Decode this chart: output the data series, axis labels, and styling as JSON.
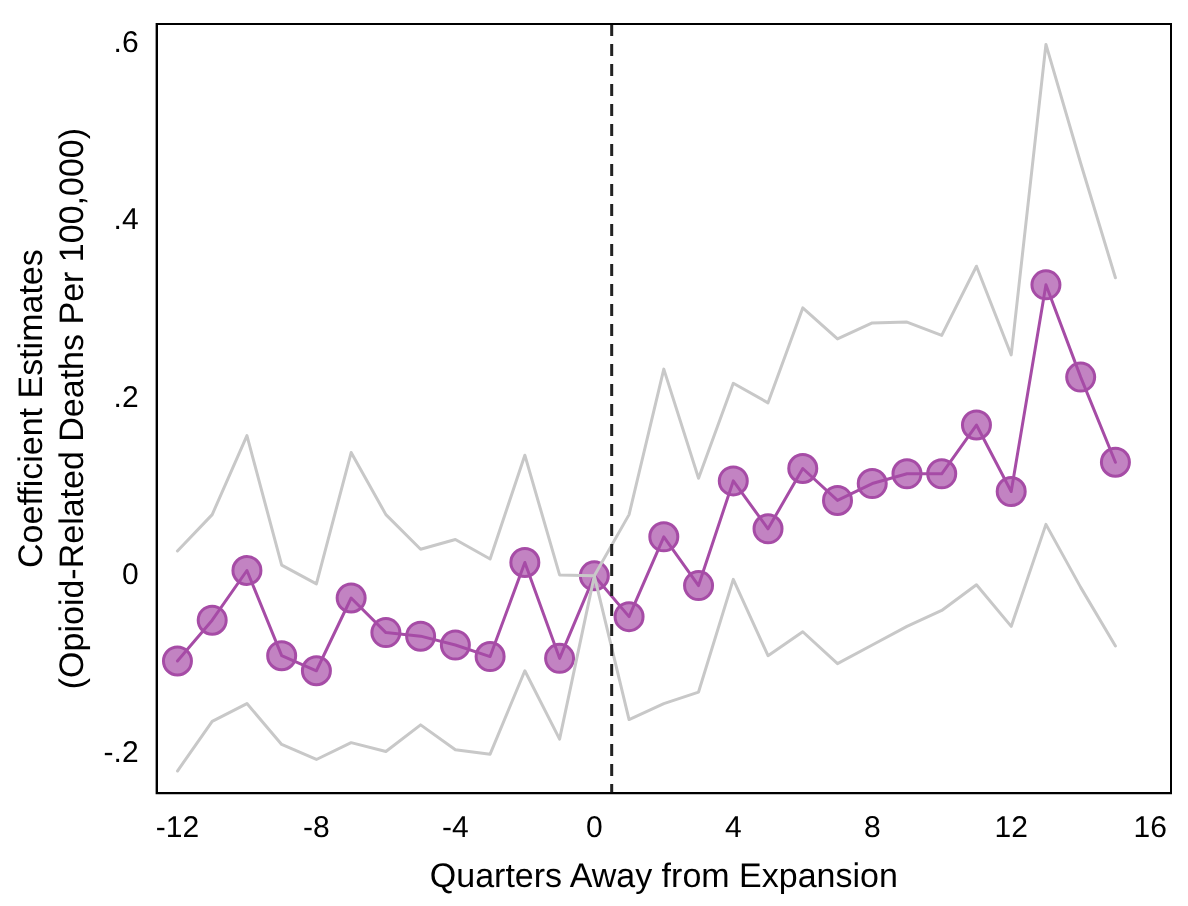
{
  "chart_data": {
    "type": "line",
    "xlabel": "Quarters Away from Expansion",
    "ylabel": "Coefficient Estimates\n(Opioid-Related Deaths Per 100,000)",
    "x": [
      -12,
      -11,
      -10,
      -9,
      -8,
      -7,
      -6,
      -5,
      -4,
      -3,
      -2,
      -1,
      0,
      1,
      2,
      3,
      4,
      5,
      6,
      7,
      8,
      9,
      10,
      11,
      12,
      13,
      14,
      15
    ],
    "series": [
      {
        "color": "#c8c8c8",
        "marker": "none",
        "values": [
          0.028,
          0.069,
          0.158,
          0.012,
          -0.009,
          0.139,
          0.069,
          0.03,
          0.041,
          0.019,
          0.136,
          0.001,
          0,
          0.069,
          0.233,
          0.11,
          0.217,
          0.195,
          0.302,
          0.267,
          0.285,
          0.286,
          0.271,
          0.349,
          0.249,
          0.599,
          0.465,
          0.336
        ]
      },
      {
        "color": "#c8c8c8",
        "marker": "none",
        "values": [
          -0.22,
          -0.164,
          -0.144,
          -0.19,
          -0.207,
          -0.188,
          -0.198,
          -0.168,
          -0.196,
          -0.201,
          -0.107,
          -0.184,
          0,
          -0.162,
          -0.144,
          -0.131,
          -0.004,
          -0.09,
          -0.063,
          -0.099,
          -0.078,
          -0.057,
          -0.039,
          -0.01,
          -0.057,
          0.058,
          -0.013,
          -0.079
        ]
      },
      {
        "color": "#a64ca6",
        "values": [
          -0.096,
          -0.05,
          0.006,
          -0.09,
          -0.107,
          -0.025,
          -0.064,
          -0.068,
          -0.078,
          -0.091,
          0.015,
          -0.093,
          0,
          -0.046,
          0.044,
          -0.011,
          0.107,
          0.053,
          0.121,
          0.085,
          0.104,
          0.115,
          0.115,
          0.17,
          0.095,
          0.328,
          0.224,
          0.128
        ]
      }
    ],
    "xlim": [
      -12.6,
      16.6
    ],
    "xticks": [
      -12,
      -8,
      -4,
      0,
      4,
      8,
      12,
      16
    ],
    "ylim": [
      -0.245,
      0.622
    ],
    "yticks": [
      {
        "value": -0.2,
        "label": "-.2"
      },
      0,
      {
        "value": 0.2,
        "label": ".2"
      },
      {
        "value": 0.4,
        "label": ".4"
      },
      {
        "value": 0.6,
        "label": ".6"
      }
    ],
    "ref_lines": [
      {
        "axis": "x",
        "value": 0.5,
        "line_style": "dashed",
        "color": "#222222"
      }
    ],
    "grid": false,
    "legend": false,
    "marker": "circle",
    "line_style": "solid"
  }
}
